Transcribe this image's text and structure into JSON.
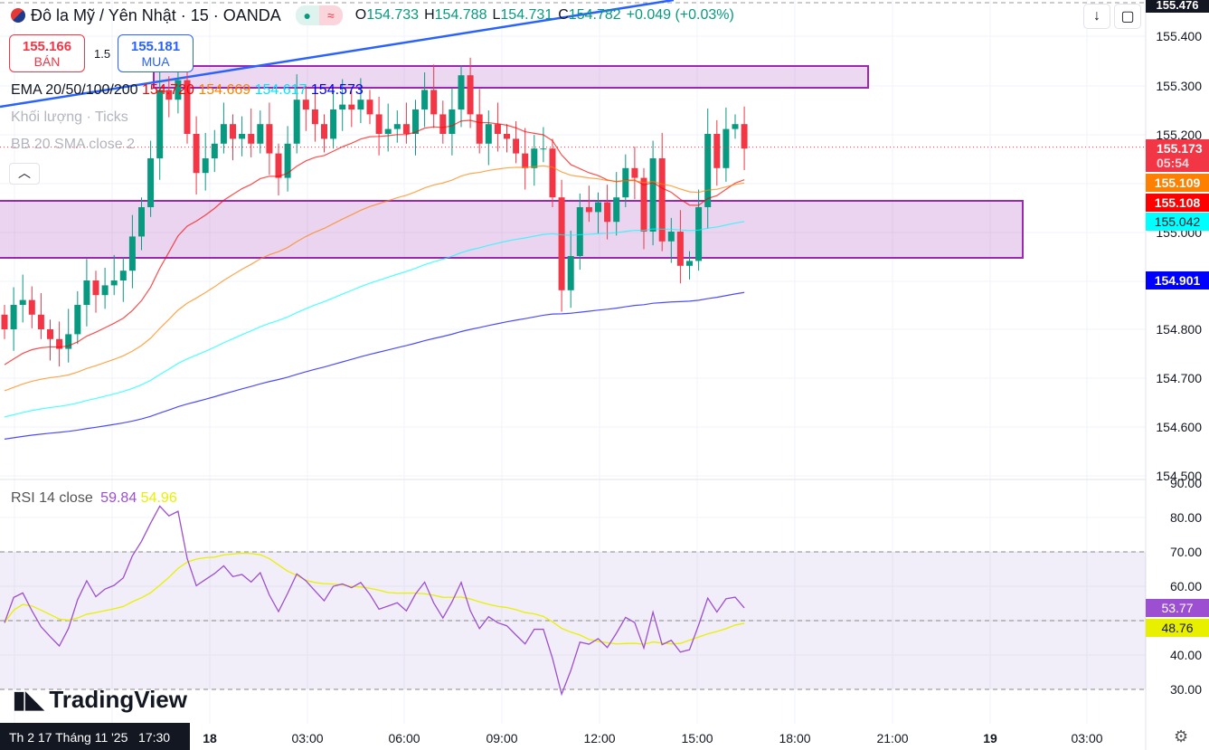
{
  "header": {
    "symbol": "Đô la Mỹ / Yên Nhật · 15 · OANDA",
    "o_label": "O",
    "o": "154.733",
    "h_label": "H",
    "h": "154.788",
    "l_label": "L",
    "l": "154.731",
    "c_label": "C",
    "c": "154.782",
    "change": "+0.049 (+0.03%)",
    "pill_icon": "≈"
  },
  "trade": {
    "sell_price": "155.166",
    "sell_label": "BÁN",
    "spread": "1.5",
    "buy_price": "155.181",
    "buy_label": "MUA"
  },
  "indicators": {
    "ema_label": "EMA 20/50/100/200",
    "ema20": "154.720",
    "ema50": "154.669",
    "ema100": "154.617",
    "ema200": "154.573",
    "volume_label": "Khối lượng · Ticks",
    "bb_label": "BB 20 SMA close 2",
    "rsi_label": "RSI 14 close",
    "rsi_value": "59.84",
    "rsi_ma_value": "54.96"
  },
  "price_axis": {
    "top": "155.476",
    "labels": [
      "155.400",
      "155.300",
      "155.200",
      "155.000",
      "154.800",
      "154.700",
      "154.600",
      "154.500"
    ],
    "rsi_labels": [
      "90.00",
      "80.00",
      "70.00",
      "60.00",
      "40.00",
      "30.00"
    ]
  },
  "tags": {
    "last": "155.173",
    "countdown": "05:54",
    "ema50": "155.109",
    "ema20": "155.108",
    "ema100": "155.042",
    "ema200": "154.901",
    "rsi": "53.77",
    "rsi_ma": "48.76"
  },
  "time_axis": {
    "crosshair": "Th 2 17 Tháng 11 '25   17:30",
    "labels": [
      "18",
      "03:00",
      "06:00",
      "09:00",
      "12:00",
      "15:00",
      "18:00",
      "21:00",
      "19",
      "03:00"
    ]
  },
  "logo": "TradingView",
  "colors": {
    "up": "#089981",
    "down": "#f23645",
    "ema20": "#ff0000",
    "ema50": "#ff8000",
    "ema100": "#00ffff",
    "ema200": "#0000ff",
    "rsi": "#9c4fd1",
    "rsi_ma": "#e8f000",
    "zone": "#9c27b0"
  },
  "chart_data": {
    "type": "candlestick",
    "closes": [
      154.8,
      154.85,
      154.86,
      154.83,
      154.8,
      154.78,
      154.76,
      154.79,
      154.85,
      154.9,
      154.87,
      154.89,
      154.9,
      154.92,
      154.99,
      155.05,
      155.15,
      155.29,
      155.27,
      155.31,
      155.2,
      155.12,
      155.15,
      155.18,
      155.22,
      155.19,
      155.2,
      155.18,
      155.22,
      155.16,
      155.11,
      155.18,
      155.27,
      155.25,
      155.22,
      155.19,
      155.25,
      155.26,
      155.25,
      155.27,
      155.24,
      155.2,
      155.21,
      155.22,
      155.2,
      155.25,
      155.29,
      155.24,
      155.2,
      155.25,
      155.32,
      155.24,
      155.18,
      155.22,
      155.2,
      155.19,
      155.16,
      155.13,
      155.17,
      155.17,
      155.07,
      154.88,
      154.95,
      155.05,
      155.04,
      155.06,
      155.02,
      155.07,
      155.13,
      155.11,
      155.0,
      155.15,
      154.98,
      155.0,
      154.93,
      154.94,
      155.05,
      155.2,
      155.13,
      155.21,
      155.22,
      155.17
    ],
    "ylim": [
      154.5,
      155.476
    ],
    "rsi_ylim": [
      30,
      90
    ]
  }
}
